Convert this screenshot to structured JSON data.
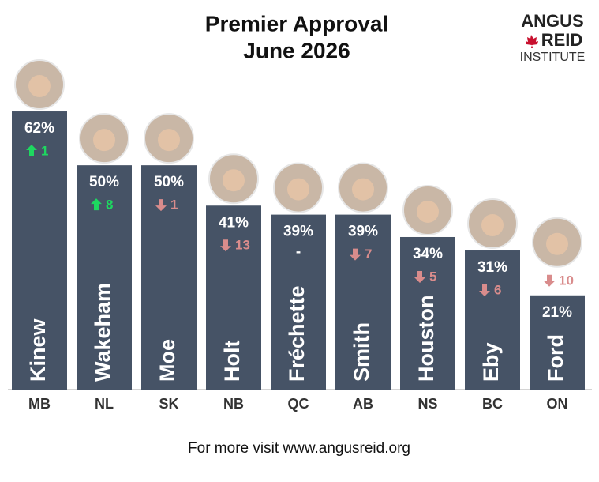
{
  "chart_data": {
    "type": "bar",
    "title": "Premier Approval",
    "subtitle": "June 2026",
    "logo": [
      "ANGUS",
      "REID",
      "INSTITUTE"
    ],
    "footer": "For more visit www.angusreid.org",
    "categories": [
      "MB",
      "NL",
      "SK",
      "NB",
      "QC",
      "AB",
      "NS",
      "BC",
      "ON"
    ],
    "premiers": [
      "Kinew",
      "Wakeham",
      "Moe",
      "Holt",
      "Fréchette",
      "Smith",
      "Houston",
      "Eby",
      "Ford"
    ],
    "values": [
      62,
      50,
      50,
      41,
      39,
      39,
      34,
      31,
      21
    ],
    "value_labels": [
      "62%",
      "50%",
      "50%",
      "41%",
      "39%",
      "39%",
      "34%",
      "31%",
      "21%"
    ],
    "changes": [
      1,
      8,
      -1,
      -13,
      null,
      -7,
      -5,
      -6,
      -10
    ],
    "change_labels": [
      "1",
      "8",
      "1",
      "13",
      "-",
      "7",
      "5",
      "6",
      "10"
    ],
    "color": "#465366",
    "up_color": "#1ed760",
    "down_color": "#d98c8c",
    "ylim": [
      0,
      70
    ]
  }
}
